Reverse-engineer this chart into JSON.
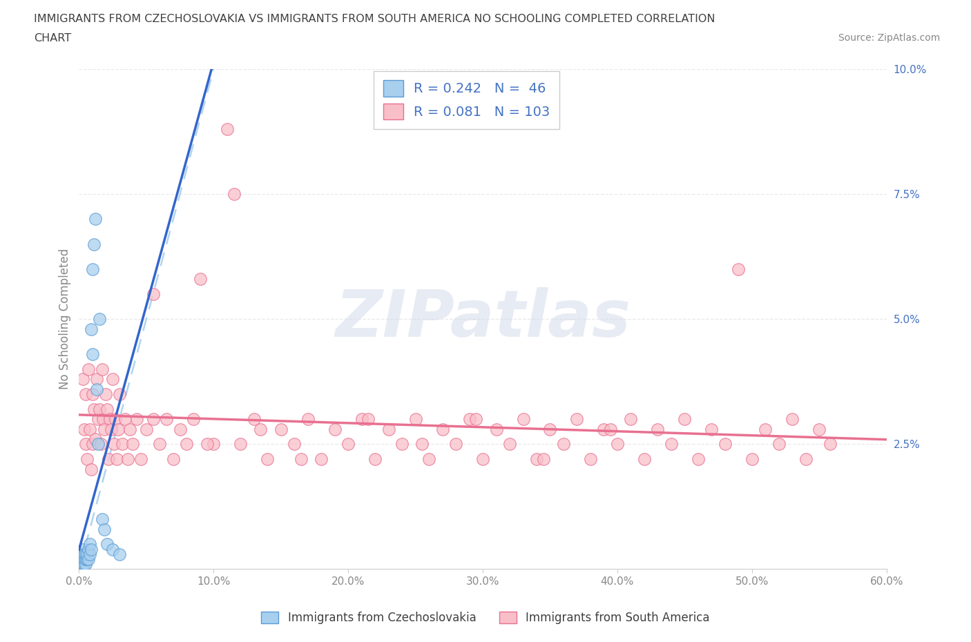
{
  "title_line1": "IMMIGRANTS FROM CZECHOSLOVAKIA VS IMMIGRANTS FROM SOUTH AMERICA NO SCHOOLING COMPLETED CORRELATION",
  "title_line2": "CHART",
  "source": "Source: ZipAtlas.com",
  "ylabel": "No Schooling Completed",
  "xlim": [
    0.0,
    0.6
  ],
  "ylim": [
    0.0,
    0.1
  ],
  "xticks": [
    0.0,
    0.1,
    0.2,
    0.3,
    0.4,
    0.5,
    0.6
  ],
  "yticks": [
    0.0,
    0.025,
    0.05,
    0.075,
    0.1
  ],
  "xticklabels": [
    "0.0%",
    "10.0%",
    "20.0%",
    "30.0%",
    "40.0%",
    "50.0%",
    "60.0%"
  ],
  "yticklabels_right": [
    "",
    "2.5%",
    "5.0%",
    "7.5%",
    "10.0%"
  ],
  "blue_face": "#A8CFEE",
  "blue_edge": "#5B9BD5",
  "blue_line": "#3366CC",
  "pink_face": "#F9BFC9",
  "pink_edge": "#E87090",
  "pink_line": "#E87090",
  "diag_color": "#A8CFEE",
  "R_blue": 0.242,
  "N_blue": 46,
  "R_pink": 0.081,
  "N_pink": 103,
  "watermark": "ZIPatlas",
  "background_color": "#ffffff",
  "grid_color": "#e8e8e8",
  "label_color_blue": "#4472C4",
  "label_color_gray": "#888888",
  "title_color": "#404040",
  "blue_x": [
    0.001,
    0.001,
    0.001,
    0.001,
    0.001,
    0.001,
    0.001,
    0.002,
    0.002,
    0.002,
    0.002,
    0.002,
    0.002,
    0.002,
    0.003,
    0.003,
    0.003,
    0.003,
    0.003,
    0.003,
    0.004,
    0.004,
    0.004,
    0.005,
    0.005,
    0.005,
    0.006,
    0.006,
    0.007,
    0.007,
    0.008,
    0.008,
    0.009,
    0.009,
    0.01,
    0.01,
    0.011,
    0.012,
    0.013,
    0.014,
    0.015,
    0.017,
    0.019,
    0.021,
    0.025,
    0.03
  ],
  "blue_y": [
    0.0,
    0.0,
    0.001,
    0.001,
    0.002,
    0.002,
    0.003,
    0.0,
    0.001,
    0.001,
    0.002,
    0.002,
    0.003,
    0.003,
    0.0,
    0.001,
    0.001,
    0.002,
    0.003,
    0.004,
    0.001,
    0.002,
    0.003,
    0.001,
    0.002,
    0.003,
    0.002,
    0.003,
    0.002,
    0.004,
    0.003,
    0.005,
    0.004,
    0.048,
    0.043,
    0.06,
    0.065,
    0.07,
    0.036,
    0.025,
    0.05,
    0.01,
    0.008,
    0.005,
    0.004,
    0.003
  ],
  "pink_x": [
    0.003,
    0.004,
    0.005,
    0.005,
    0.006,
    0.007,
    0.008,
    0.009,
    0.01,
    0.01,
    0.011,
    0.012,
    0.013,
    0.014,
    0.015,
    0.016,
    0.017,
    0.018,
    0.019,
    0.02,
    0.021,
    0.022,
    0.023,
    0.024,
    0.025,
    0.026,
    0.027,
    0.028,
    0.029,
    0.03,
    0.032,
    0.034,
    0.036,
    0.038,
    0.04,
    0.043,
    0.046,
    0.05,
    0.055,
    0.06,
    0.065,
    0.07,
    0.075,
    0.08,
    0.085,
    0.09,
    0.1,
    0.11,
    0.115,
    0.12,
    0.13,
    0.14,
    0.15,
    0.16,
    0.17,
    0.18,
    0.19,
    0.2,
    0.21,
    0.22,
    0.23,
    0.24,
    0.25,
    0.26,
    0.27,
    0.28,
    0.29,
    0.3,
    0.31,
    0.32,
    0.33,
    0.34,
    0.35,
    0.36,
    0.37,
    0.38,
    0.39,
    0.4,
    0.41,
    0.42,
    0.43,
    0.44,
    0.45,
    0.46,
    0.47,
    0.48,
    0.49,
    0.5,
    0.51,
    0.52,
    0.53,
    0.54,
    0.55,
    0.558,
    0.395,
    0.345,
    0.295,
    0.255,
    0.215,
    0.165,
    0.135,
    0.095,
    0.055
  ],
  "pink_y": [
    0.038,
    0.028,
    0.025,
    0.035,
    0.022,
    0.04,
    0.028,
    0.02,
    0.035,
    0.025,
    0.032,
    0.026,
    0.038,
    0.03,
    0.032,
    0.025,
    0.04,
    0.03,
    0.028,
    0.035,
    0.032,
    0.022,
    0.03,
    0.028,
    0.038,
    0.025,
    0.03,
    0.022,
    0.028,
    0.035,
    0.025,
    0.03,
    0.022,
    0.028,
    0.025,
    0.03,
    0.022,
    0.028,
    0.055,
    0.025,
    0.03,
    0.022,
    0.028,
    0.025,
    0.03,
    0.058,
    0.025,
    0.088,
    0.075,
    0.025,
    0.03,
    0.022,
    0.028,
    0.025,
    0.03,
    0.022,
    0.028,
    0.025,
    0.03,
    0.022,
    0.028,
    0.025,
    0.03,
    0.022,
    0.028,
    0.025,
    0.03,
    0.022,
    0.028,
    0.025,
    0.03,
    0.022,
    0.028,
    0.025,
    0.03,
    0.022,
    0.028,
    0.025,
    0.03,
    0.022,
    0.028,
    0.025,
    0.03,
    0.022,
    0.028,
    0.025,
    0.06,
    0.022,
    0.028,
    0.025,
    0.03,
    0.022,
    0.028,
    0.025,
    0.028,
    0.022,
    0.03,
    0.025,
    0.03,
    0.022,
    0.028,
    0.025,
    0.03
  ]
}
